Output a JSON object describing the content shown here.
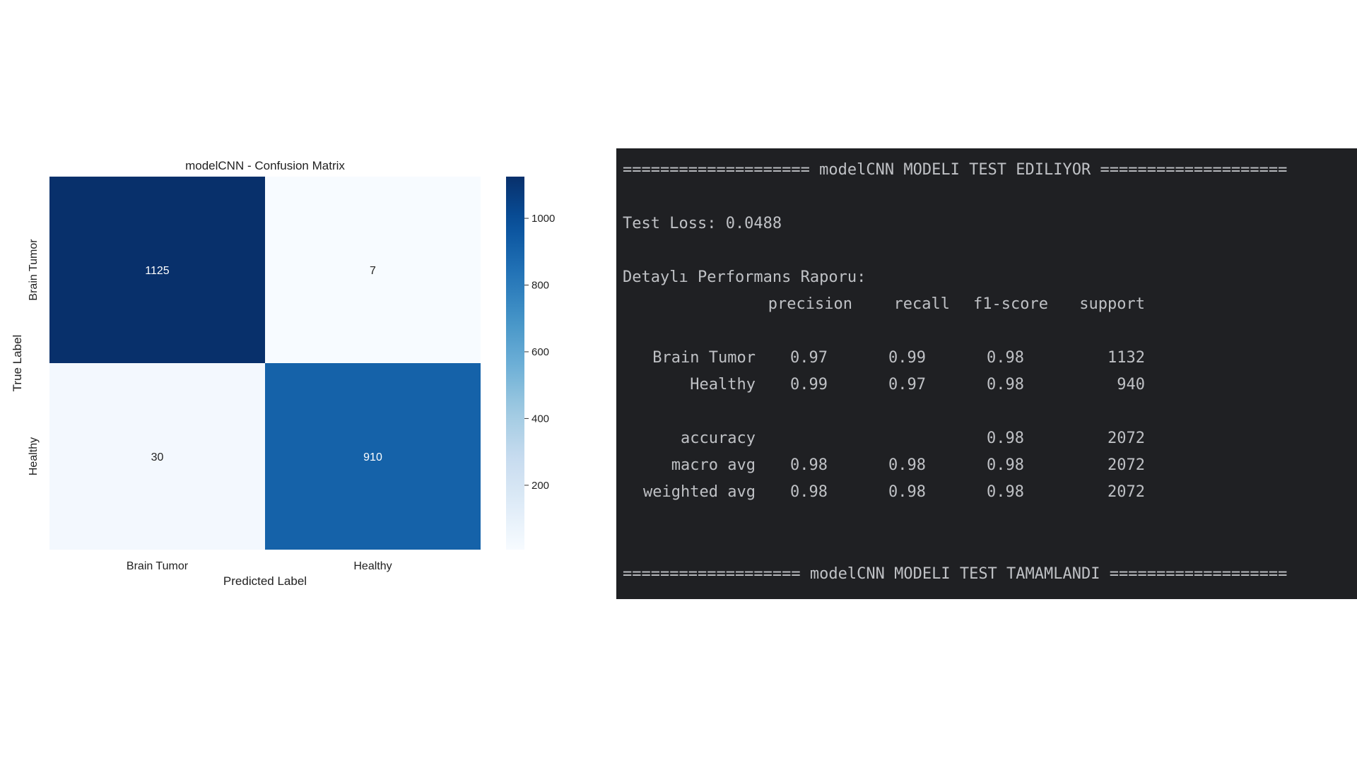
{
  "chart_data": {
    "type": "heatmap",
    "title": "modelCNN - Confusion Matrix",
    "xlabel": "Predicted Label",
    "ylabel": "True Label",
    "x_categories": [
      "Brain Tumor",
      "Healthy"
    ],
    "y_categories": [
      "Brain Tumor",
      "Healthy"
    ],
    "values": [
      [
        1125,
        7
      ],
      [
        30,
        910
      ]
    ],
    "colormap": "Blues",
    "colorbar": {
      "range": [
        7,
        1125
      ],
      "ticks": [
        200,
        400,
        600,
        800,
        1000
      ]
    }
  },
  "terminal": {
    "header": "==================== modelCNN MODELI TEST EDILIYOR ====================",
    "loss_line": "Test Loss: 0.0488",
    "report_title": "Detaylı Performans Raporu:",
    "columns": [
      "precision",
      "recall",
      "f1-score",
      "support"
    ],
    "rows": [
      {
        "label": "Brain Tumor",
        "precision": "0.97",
        "recall": "0.99",
        "f1": "0.98",
        "support": "1132"
      },
      {
        "label": "Healthy",
        "precision": "0.99",
        "recall": "0.97",
        "f1": "0.98",
        "support": "940"
      }
    ],
    "summary_rows": [
      {
        "label": "accuracy",
        "precision": "",
        "recall": "",
        "f1": "0.98",
        "support": "2072"
      },
      {
        "label": "macro avg",
        "precision": "0.98",
        "recall": "0.98",
        "f1": "0.98",
        "support": "2072"
      },
      {
        "label": "weighted avg",
        "precision": "0.98",
        "recall": "0.98",
        "f1": "0.98",
        "support": "2072"
      }
    ],
    "footer": "=================== modelCNN MODELI TEST TAMAMLANDI ==================="
  }
}
